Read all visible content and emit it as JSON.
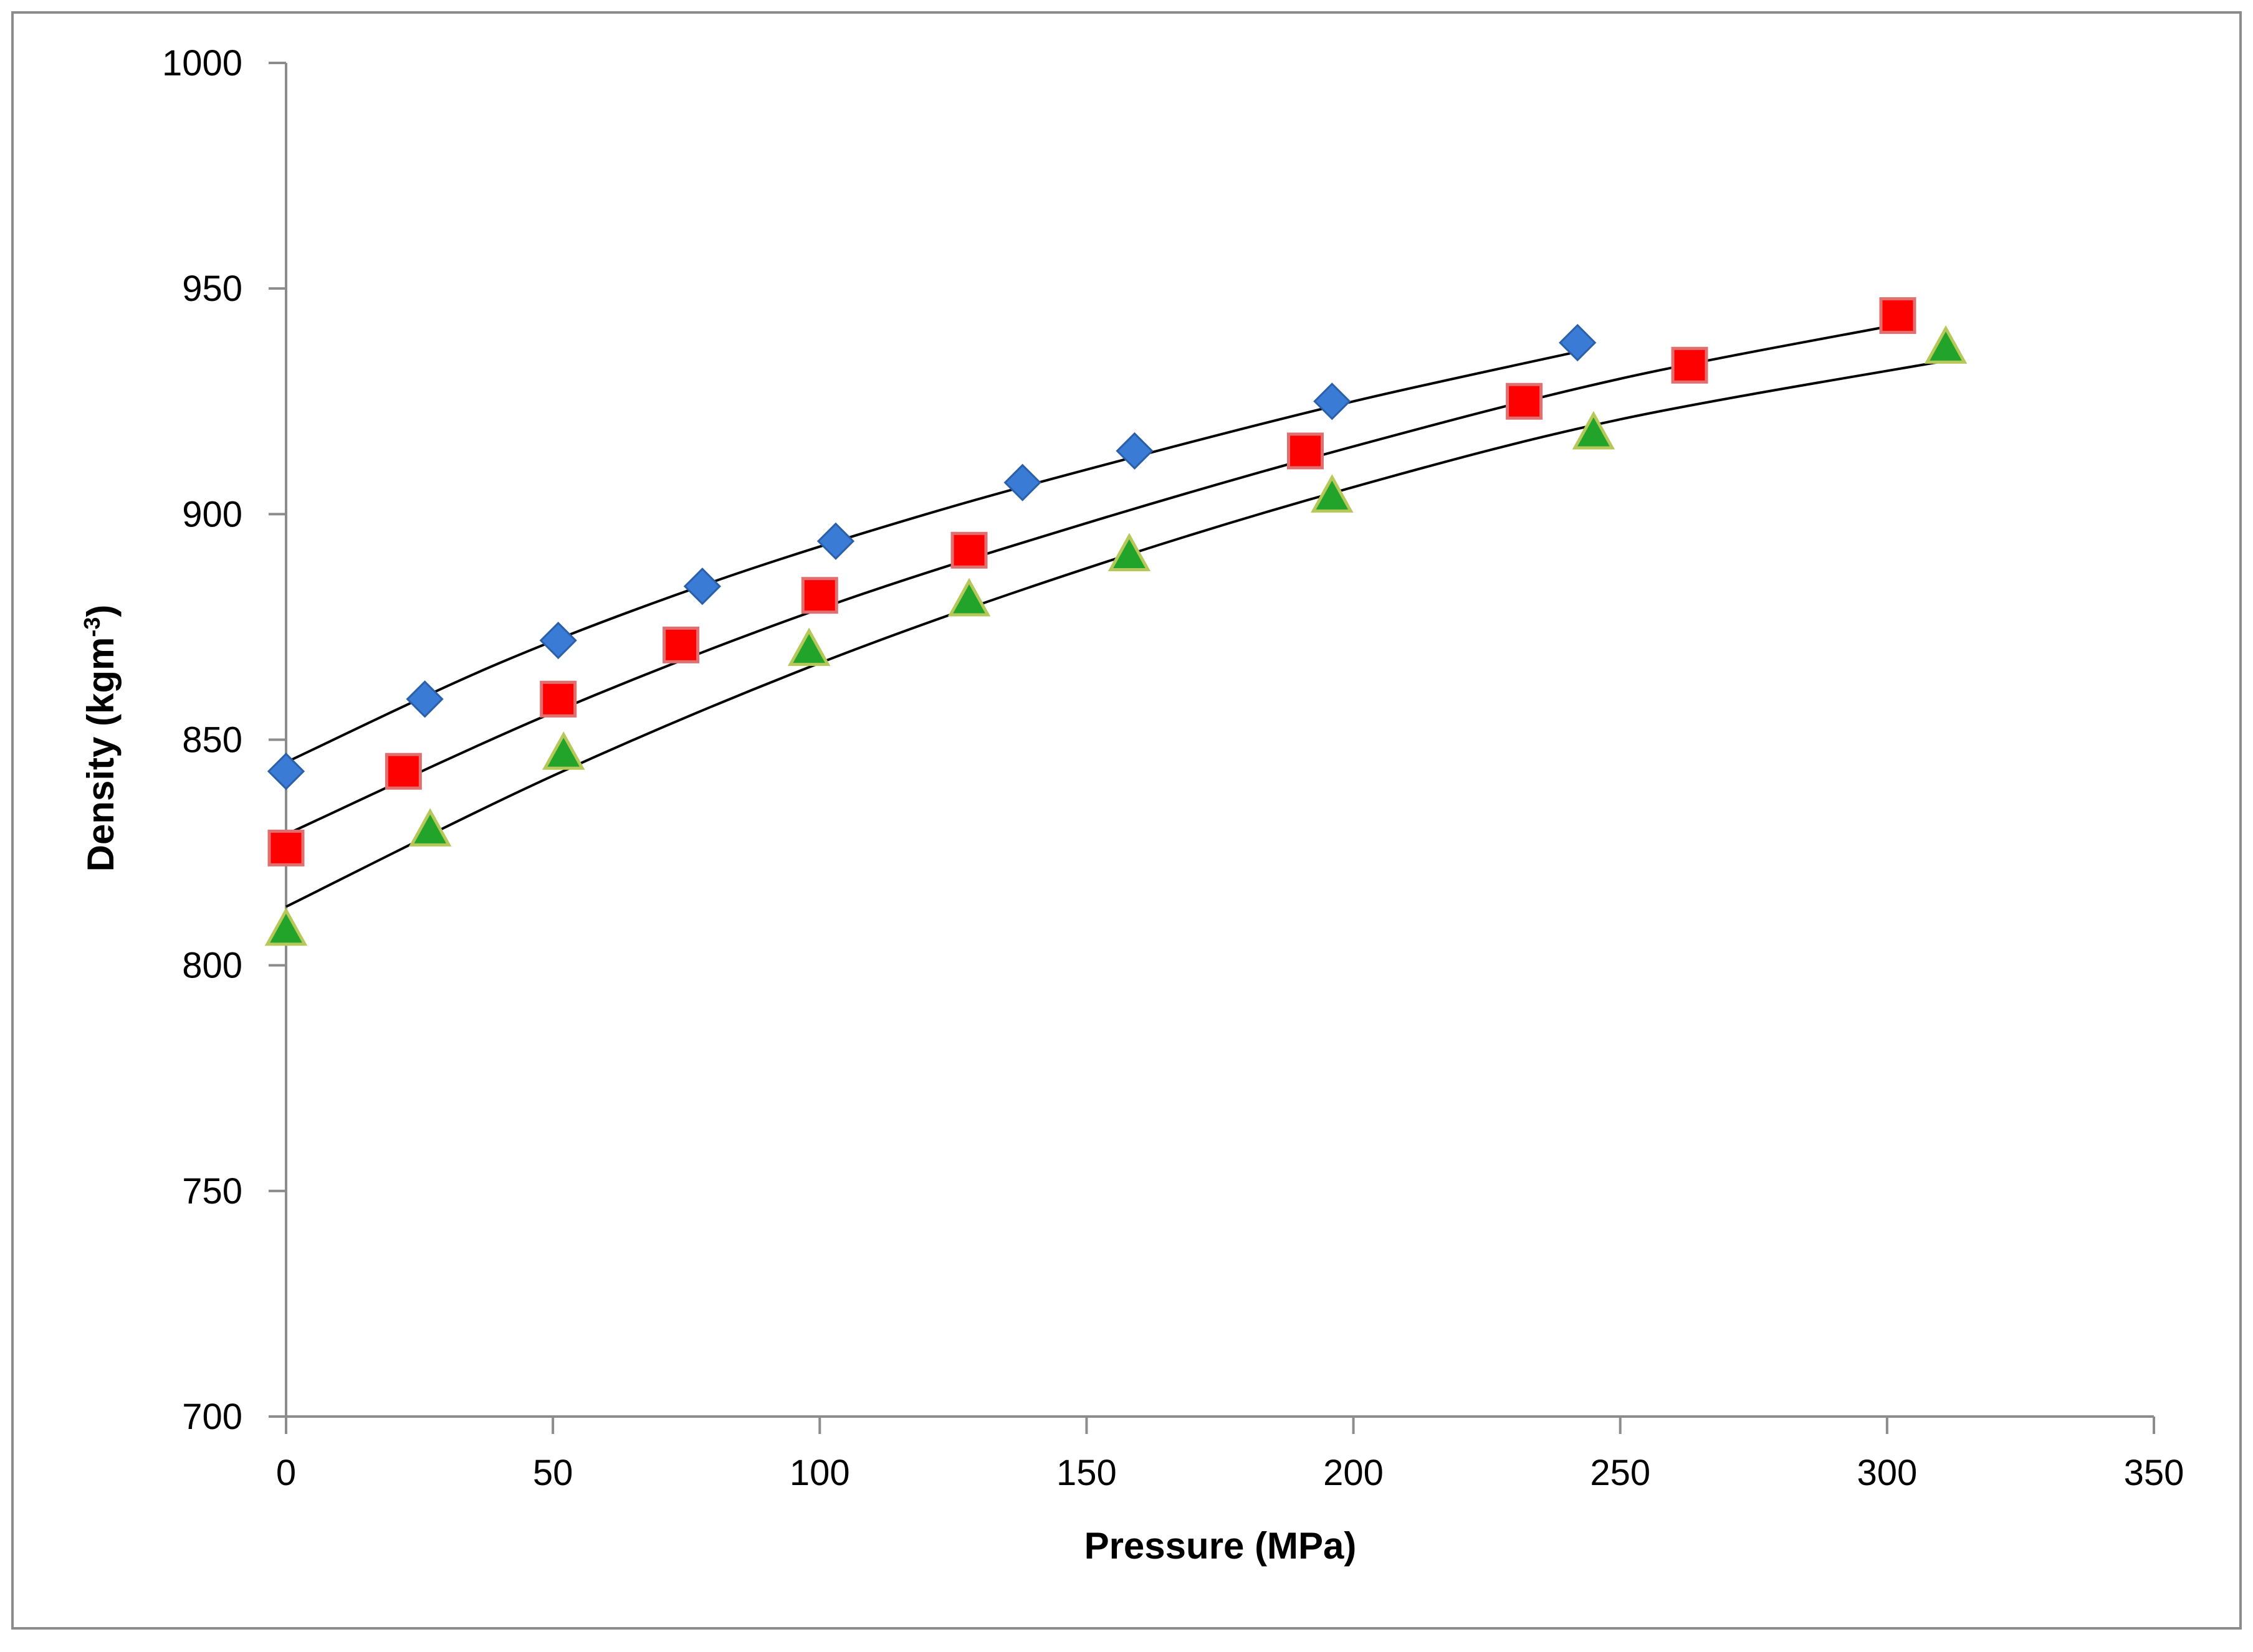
{
  "chart_data": {
    "type": "scatter",
    "title": "",
    "xlabel": "Pressure (MPa)",
    "ylabel_main": "Density (kgm",
    "ylabel_sup": "-3",
    "ylabel_close": ")",
    "xlim": [
      0,
      350
    ],
    "ylim": [
      700,
      1000
    ],
    "xticks": [
      0,
      50,
      100,
      150,
      200,
      250,
      300,
      350
    ],
    "yticks": [
      700,
      750,
      800,
      850,
      900,
      950,
      1000
    ],
    "grid": false,
    "legend": "none",
    "series": [
      {
        "marker": "diamond",
        "color": "#3a7bd5",
        "points": [
          [
            0,
            843
          ],
          [
            26,
            859
          ],
          [
            51,
            872
          ],
          [
            78,
            884
          ],
          [
            103,
            894
          ],
          [
            138,
            907
          ],
          [
            159,
            914
          ],
          [
            196,
            925
          ],
          [
            242,
            938
          ]
        ],
        "fit": [
          [
            0,
            845
          ],
          [
            40,
            867
          ],
          [
            80,
            885
          ],
          [
            120,
            900
          ],
          [
            160,
            913
          ],
          [
            200,
            925
          ],
          [
            242,
            936
          ]
        ]
      },
      {
        "marker": "square",
        "color": "#ff0000",
        "points": [
          [
            0,
            826
          ],
          [
            22,
            843
          ],
          [
            51,
            859
          ],
          [
            74,
            871
          ],
          [
            100,
            882
          ],
          [
            128,
            892
          ],
          [
            191,
            914
          ],
          [
            232,
            925
          ],
          [
            263,
            933
          ],
          [
            302,
            944
          ]
        ],
        "fit": [
          [
            0,
            829
          ],
          [
            50,
            856
          ],
          [
            100,
            879
          ],
          [
            150,
            898
          ],
          [
            200,
            915
          ],
          [
            250,
            930
          ],
          [
            302,
            942
          ]
        ]
      },
      {
        "marker": "triangle",
        "color": "#22a32a",
        "points": [
          [
            0,
            808
          ],
          [
            27,
            830
          ],
          [
            52,
            847
          ],
          [
            98,
            870
          ],
          [
            128,
            881
          ],
          [
            158,
            891
          ],
          [
            196,
            904
          ],
          [
            245,
            918
          ],
          [
            311,
            937
          ]
        ],
        "fit": [
          [
            0,
            813
          ],
          [
            50,
            842
          ],
          [
            100,
            867
          ],
          [
            150,
            888
          ],
          [
            200,
            906
          ],
          [
            250,
            921
          ],
          [
            311,
            934
          ]
        ]
      }
    ]
  }
}
